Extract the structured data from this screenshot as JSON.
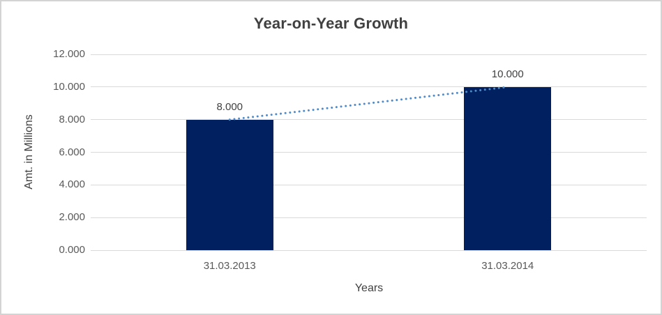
{
  "window": {
    "background": "#ffffff",
    "border_color": "#d3d3d3"
  },
  "chart_data": {
    "type": "bar",
    "title": "Year-on-Year Growth",
    "categories": [
      "31.03.2013",
      "31.03.2014"
    ],
    "values": [
      8.0,
      10.0
    ],
    "data_labels": [
      "8.000",
      "10.000"
    ],
    "xlabel": "Years",
    "ylabel": "Amt. in Millions",
    "ylim": [
      0,
      12
    ],
    "ytick_step": 2,
    "ytick_labels": [
      "0.000",
      "2.000",
      "4.000",
      "6.000",
      "8.000",
      "10.000",
      "12.000"
    ],
    "grid": true,
    "legend_position": "none",
    "bar_color": "#002060",
    "gridline_color": "#d9d9d9",
    "title_color": "#404040",
    "tick_color": "#595959",
    "trendline": {
      "style": "dotted",
      "color": "#4f8ac9",
      "from": {
        "category": "31.03.2013",
        "value": 8.0
      },
      "to": {
        "category": "31.03.2014",
        "value": 10.0
      }
    }
  }
}
